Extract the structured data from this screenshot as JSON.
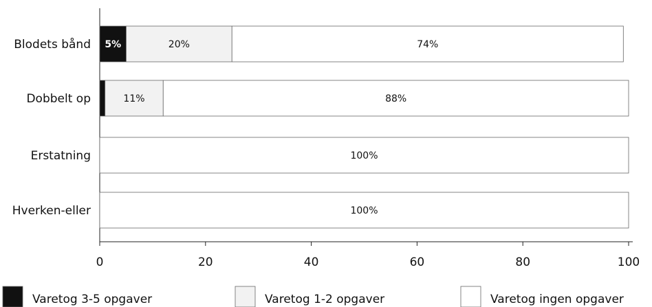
{
  "chart_data": {
    "type": "bar",
    "orientation": "horizontal",
    "stacked": true,
    "categories": [
      "Blodets bånd",
      "Dobbelt op",
      "Erstatning",
      "Hverken-eller"
    ],
    "series": [
      {
        "name": "Varetog 3-5 opgaver",
        "color": "#111111",
        "values": [
          5,
          1,
          0,
          0
        ],
        "labels": [
          "5%",
          "",
          "",
          ""
        ]
      },
      {
        "name": "Varetog 1-2 opgaver",
        "color": "#f2f2f2",
        "values": [
          20,
          11,
          0,
          0
        ],
        "labels": [
          "20%",
          "11%",
          "",
          ""
        ]
      },
      {
        "name": "Varetog ingen opgaver",
        "color": "#ffffff",
        "values": [
          74,
          88,
          100,
          100
        ],
        "labels": [
          "74%",
          "88%",
          "100%",
          "100%"
        ]
      }
    ],
    "xlim": [
      0,
      100
    ],
    "xticks": [
      "0",
      "20",
      "40",
      "60",
      "80",
      "100"
    ],
    "grid": false,
    "legend_position": "bottom"
  }
}
